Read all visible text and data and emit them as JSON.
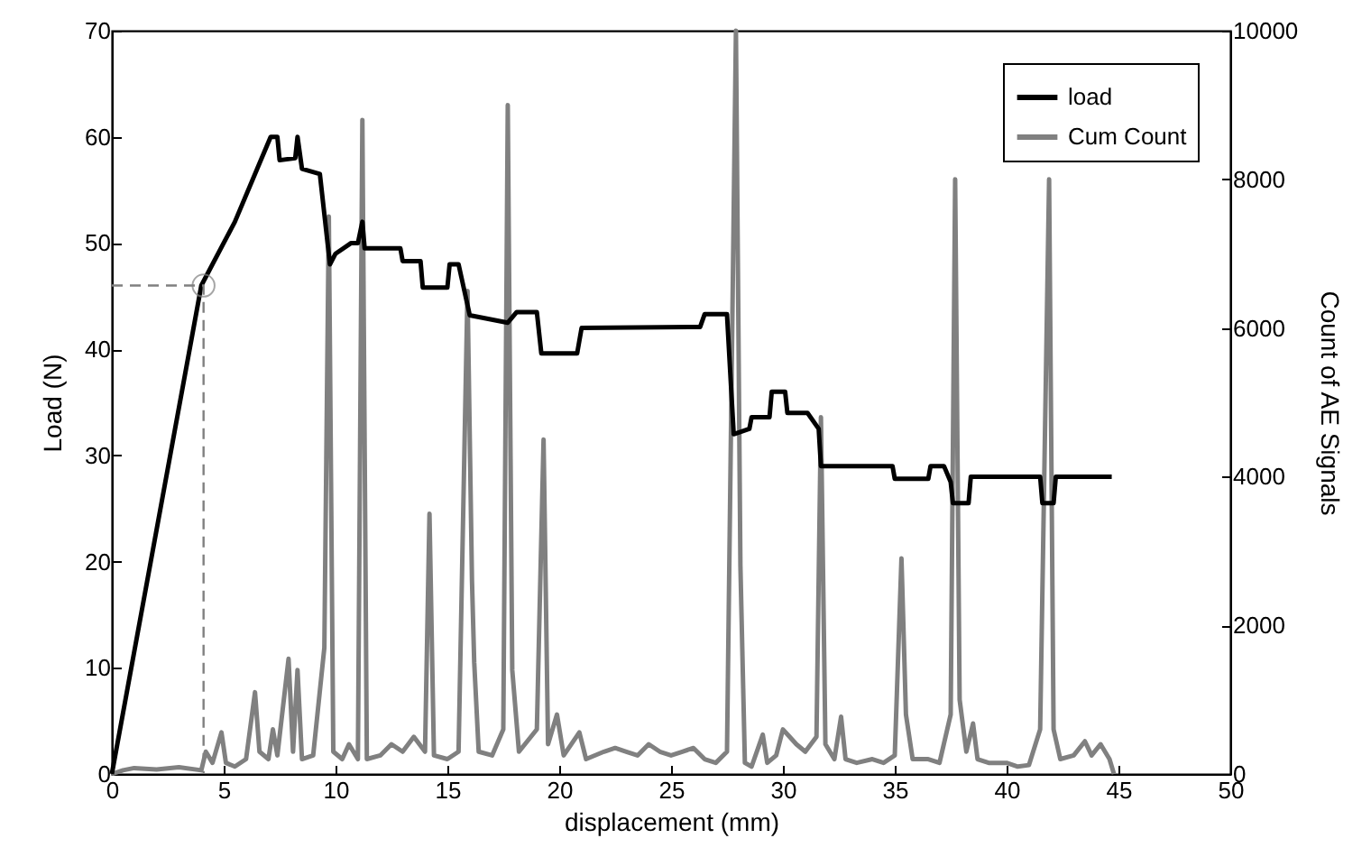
{
  "chart_data": {
    "type": "line",
    "xlabel": "displacement (mm)",
    "ylabel": "Load (N)",
    "y2label": "Count of AE Signals",
    "xlim": [
      0,
      50
    ],
    "xticks": [
      0,
      5,
      10,
      15,
      20,
      25,
      30,
      35,
      40,
      45,
      50
    ],
    "ylim": [
      0,
      70
    ],
    "yticks": [
      0,
      10,
      20,
      30,
      40,
      50,
      60,
      70
    ],
    "y2lim": [
      0,
      10000
    ],
    "y2ticks": [
      0,
      2000,
      4000,
      6000,
      8000,
      10000
    ],
    "legend": "top right",
    "grid": false,
    "series": [
      {
        "name": "Cum Count",
        "color": "#808080",
        "axis": "y2",
        "x": [
          0,
          0.5,
          1,
          2,
          3,
          4,
          4.2,
          4.5,
          4.9,
          5.1,
          5.5,
          6,
          6.4,
          6.6,
          7,
          7.2,
          7.4,
          7.9,
          8.1,
          8.3,
          8.5,
          9,
          9.5,
          9.7,
          9.9,
          10.3,
          10.6,
          11,
          11.2,
          11.4,
          12,
          12.5,
          13,
          13.5,
          14,
          14.2,
          14.4,
          15,
          15.5,
          15.9,
          16.1,
          16.2,
          16.4,
          17,
          17.5,
          17.7,
          17.9,
          18.2,
          19,
          19.3,
          19.5,
          19.9,
          20.2,
          20.9,
          21.2,
          22,
          22.5,
          23,
          23.5,
          24,
          24.5,
          25,
          25.5,
          26,
          26.5,
          27,
          27.5,
          27.9,
          28.1,
          28.3,
          28.6,
          29.1,
          29.3,
          29.7,
          30,
          30.3,
          30.6,
          31,
          31.5,
          31.7,
          31.9,
          32.3,
          32.6,
          32.8,
          33.3,
          34,
          34.5,
          35,
          35.3,
          35.5,
          35.8,
          36.5,
          37,
          37.5,
          37.7,
          37.9,
          38.2,
          38.5,
          38.7,
          39.2,
          40,
          40.5,
          41,
          41.5,
          41.9,
          42.1,
          42.4,
          43,
          43.5,
          43.8,
          44.2,
          44.6,
          44.8
        ],
        "values": [
          0,
          50,
          80,
          60,
          90,
          50,
          300,
          150,
          560,
          150,
          100,
          200,
          1100,
          300,
          200,
          600,
          250,
          1550,
          300,
          1400,
          200,
          250,
          1700,
          7500,
          300,
          200,
          400,
          200,
          8800,
          200,
          250,
          400,
          300,
          500,
          300,
          3500,
          250,
          200,
          300,
          6500,
          2600,
          1500,
          300,
          250,
          600,
          9000,
          1400,
          300,
          600,
          4500,
          400,
          800,
          250,
          560,
          200,
          300,
          350,
          300,
          250,
          400,
          300,
          250,
          300,
          350,
          200,
          150,
          300,
          10000,
          2800,
          150,
          100,
          530,
          150,
          250,
          600,
          500,
          400,
          300,
          500,
          4800,
          400,
          200,
          770,
          200,
          150,
          200,
          150,
          250,
          2900,
          800,
          200,
          200,
          150,
          800,
          8000,
          1000,
          300,
          680,
          200,
          150,
          150,
          100,
          120,
          600,
          8000,
          600,
          200,
          250,
          440,
          250,
          400,
          200,
          0
        ]
      },
      {
        "name": "load",
        "color": "#000000",
        "x": [
          0,
          4.0,
          5.5,
          6.5,
          7.1,
          7.4,
          7.5,
          8.2,
          8.3,
          8.5,
          9.3,
          9.75,
          10.0,
          10.7,
          11.0,
          11.2,
          11.3,
          12.9,
          13.0,
          13.8,
          13.9,
          15.0,
          15.1,
          15.5,
          16.0,
          17.7,
          18.1,
          19.0,
          19.2,
          20.8,
          21.0,
          26.3,
          26.5,
          27.5,
          27.8,
          28.5,
          28.6,
          29.4,
          29.5,
          30.1,
          30.2,
          31.1,
          31.6,
          31.7,
          34.9,
          35.0,
          36.5,
          36.6,
          37.2,
          37.5,
          37.6,
          38.3,
          38.4,
          41.5,
          41.6,
          42.1,
          42.2,
          44.7
        ],
        "values": [
          0,
          46,
          52,
          57,
          60,
          60,
          57.8,
          58,
          60,
          57,
          56.5,
          48,
          49,
          50,
          50,
          52,
          49.5,
          49.5,
          48.3,
          48.3,
          45.8,
          45.8,
          48,
          48,
          43.2,
          42.5,
          43.5,
          43.5,
          39.6,
          39.6,
          42,
          42.1,
          43.3,
          43.3,
          32,
          32.5,
          33.6,
          33.6,
          36,
          36,
          34,
          34,
          32.5,
          29,
          29,
          27.8,
          27.8,
          29,
          29,
          27.5,
          25.5,
          25.5,
          28,
          28,
          25.5,
          25.5,
          28,
          28
        ]
      },
      {
        "color": "#808080",
        "line_style": "dashed",
        "x": [
          0,
          4.1,
          4.1
        ],
        "values": [
          46,
          46,
          0
        ]
      },
      {
        "type": "scatter",
        "marker": "circle",
        "color": "#808080",
        "x": [
          4.1
        ],
        "values": [
          46
        ]
      }
    ]
  }
}
